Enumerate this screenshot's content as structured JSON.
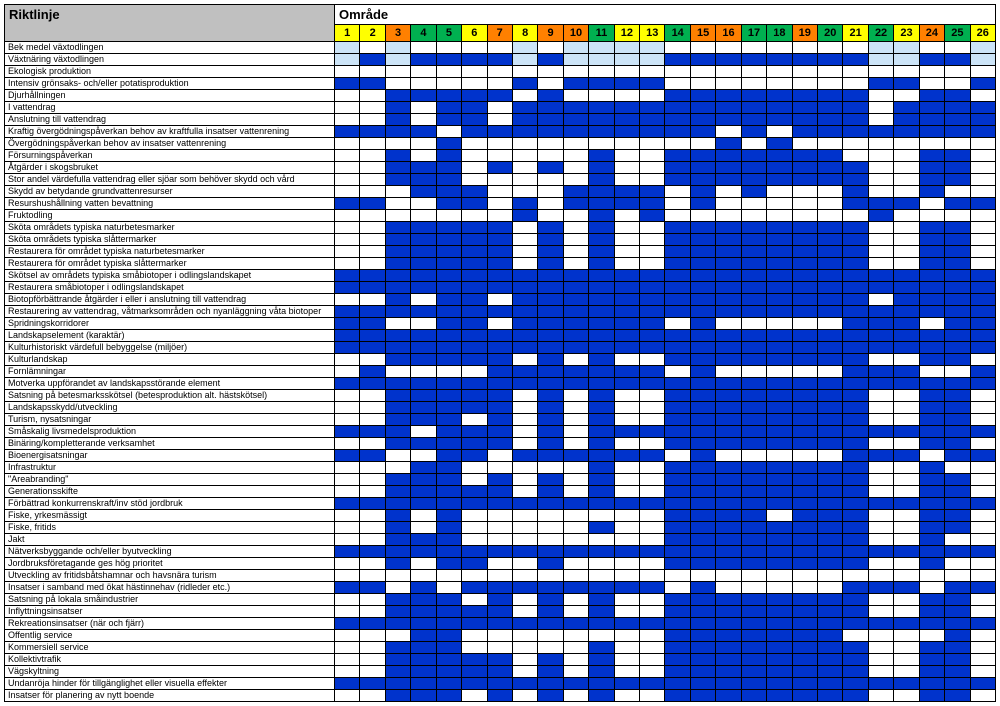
{
  "headers": {
    "left": "Riktlinje",
    "right": "Område"
  },
  "colors": {
    "yellow": "#ffff00",
    "orange": "#ff8000",
    "green": "#00b050",
    "blue_fill": "#0033cc",
    "lightblue_fill": "#cce4f7",
    "white": "#ffffff"
  },
  "columns": [
    {
      "n": "1",
      "c": "yellow"
    },
    {
      "n": "2",
      "c": "yellow"
    },
    {
      "n": "3",
      "c": "orange"
    },
    {
      "n": "4",
      "c": "green"
    },
    {
      "n": "5",
      "c": "green"
    },
    {
      "n": "6",
      "c": "yellow"
    },
    {
      "n": "7",
      "c": "orange"
    },
    {
      "n": "8",
      "c": "yellow"
    },
    {
      "n": "9",
      "c": "orange"
    },
    {
      "n": "10",
      "c": "orange"
    },
    {
      "n": "11",
      "c": "green"
    },
    {
      "n": "12",
      "c": "yellow"
    },
    {
      "n": "13",
      "c": "yellow"
    },
    {
      "n": "14",
      "c": "green"
    },
    {
      "n": "15",
      "c": "orange"
    },
    {
      "n": "16",
      "c": "orange"
    },
    {
      "n": "17",
      "c": "green"
    },
    {
      "n": "18",
      "c": "green"
    },
    {
      "n": "19",
      "c": "orange"
    },
    {
      "n": "20",
      "c": "green"
    },
    {
      "n": "21",
      "c": "yellow"
    },
    {
      "n": "22",
      "c": "green"
    },
    {
      "n": "23",
      "c": "yellow"
    },
    {
      "n": "24",
      "c": "orange"
    },
    {
      "n": "25",
      "c": "green"
    },
    {
      "n": "26",
      "c": "yellow"
    }
  ],
  "rows": [
    {
      "label": "Bek medel växtodlingen",
      "cells": "L.L....L.LLLL........LL..L"
    },
    {
      "label": "Växtnäring växtodlingen",
      "cells": "LBLBBBBLBLLLLBBBBBBBBLLBBL"
    },
    {
      "label": "Ekologisk produktion",
      "cells": ".........................."
    },
    {
      "label": "Intensiv grönsaks- och/eller potatisproduktion",
      "cells": "BB.....B.BBBB........BB..B"
    },
    {
      "label": "Djurhållningen",
      "cells": "..BBBBB.B....BBBBBBBB..BB."
    },
    {
      "label": "I vattendrag",
      "cells": "..B.BB.BBBBBBBBBBBBBB.BBBB"
    },
    {
      "label": "Anslutning till vattendrag",
      "cells": "..B.BB.BBBBBBBBBBBBBB.BBBB"
    },
    {
      "label": "Kraftig övergödningspåverkan behov av kraftfulla insatser vattenrening",
      "cells": "BBBB.BBBBBBBBBB.B.BBBBBBBB"
    },
    {
      "label": "Övergödningspåverkan behov av insatser vattenrening",
      "cells": "....B..........B.B........"
    },
    {
      "label": "Försurningspåverkan",
      "cells": "..B.B.....B..BBBBBBB...BB."
    },
    {
      "label": "Åtgärder i skogsbruket",
      "cells": "..BBB.B.B.B..BBBBBBBB..BB."
    },
    {
      "label": "Stor andel värdefulla vattendrag eller sjöar som behöver skydd och vård",
      "cells": "..BBB.....B..BBBBBBBB..BB."
    },
    {
      "label": "Skydd av betydande grundvattenresurser",
      "cells": "...BBB...BBBB.B.B...B..B.."
    },
    {
      "label": "Resurshushållning vatten bevattning",
      "cells": "BB..BB.B.BBBB.B.....BBB.BB"
    },
    {
      "label": "Fruktodling",
      "cells": ".......B..B.B........B...."
    },
    {
      "label": "Sköta områdets typiska naturbetesmarker",
      "cells": "..BBBBB.B.B..BBBBBBBB..BB."
    },
    {
      "label": "Sköta områdets typiska slåttermarker",
      "cells": "..BBBBB.B.B..BBBBBBBB..BB."
    },
    {
      "label": "Restaurera för området typiska naturbetesmarker",
      "cells": "..BBBBB.B.B..BBBBBBBB..BB."
    },
    {
      "label": "Restaurera för området typiska slåttermarker",
      "cells": "..BBBBB.B.B..BBBBBBBB..BB."
    },
    {
      "label": "Skötsel av områdets typiska småbiotoper i odlingslandskapet",
      "cells": "BBBBBBBBBBBBBBBBBBBBBBBBBB"
    },
    {
      "label": "Restaurera småbiotoper i odlingslandskapet",
      "cells": "BBBBBBBBBBBBBBBBBBBBBBBBBB"
    },
    {
      "label": "Biotopförbättrande åtgärder i eller i anslutning till vattendrag",
      "cells": "..B.BB.BBBBBBBBBBBBBB.BBBB"
    },
    {
      "label": "Restaurering av vattendrag, våtmarksområden och nyanläggning våta biotoper",
      "cells": "BBBBBBBBBBBBBBBBBBBBBBBBBB"
    },
    {
      "label": "Spridningskorridorer",
      "cells": "BB..BB.BBBBBB.B.....BBB.BB"
    },
    {
      "label": "Landskapselement (karaktär)",
      "cells": "BBBBBBBBBBBBBBBBBBBBBBBBBB"
    },
    {
      "label": "Kulturhistoriskt värdefull bebyggelse (miljöer)",
      "cells": "BBBBBBBBBBBBBBBBBBBBBBBBBB"
    },
    {
      "label": "Kulturlandskap",
      "cells": "..BBBBB.B.B..BBBBBBBB..BB."
    },
    {
      "label": "Fornlämningar",
      "cells": ".B....BBBBBBB.B.....BBB..B"
    },
    {
      "label": "Motverka uppförandet av landskapsstörande element",
      "cells": "BBBBBBBBBBBBBBBBBBBBBBBBBB"
    },
    {
      "label": "Satsning på betesmarksskötsel (betesproduktion alt. hästskötsel)",
      "cells": "..BBBBB.B.B..BBBBBBBB..BB."
    },
    {
      "label": "Landskapsskydd/utveckling",
      "cells": "..BBBBB.B.B..BBBBBBBB..BB."
    },
    {
      "label": "Turism, nysatsningar",
      "cells": "..BBB.B.B.B..BBBBBBBB..BB."
    },
    {
      "label": "Småskalig livsmedelsproduktion",
      "cells": "BBB.BBB.B.BBBBBBBBBBBBBBBB"
    },
    {
      "label": "Binäring/kompletterande verksamhet",
      "cells": "..BBBBB.B.B..BBBBBBBB..BB."
    },
    {
      "label": "Bioenergisatsningar",
      "cells": "BB..BB.BBBBBB.B.....BBB.BB"
    },
    {
      "label": "Infrastruktur",
      "cells": "...BB.....B..BBBBBBBB..B.."
    },
    {
      "label": "\"Areabranding\"",
      "cells": "..BBB.B.B.B..BBBBBBBB..BB."
    },
    {
      "label": "Generationsskifte",
      "cells": "..BBBBB.B.B..BBBBBBBB..BB."
    },
    {
      "label": "Förbättrad konkurrenskraft/inv stöd jordbruk",
      "cells": "BBBBBBBBBBBBBBBBBBBBBBBBBB"
    },
    {
      "label": "Fiske, yrkesmässigt",
      "cells": "..B.B........BBBB.BBB..BB."
    },
    {
      "label": "Fiske, fritids",
      "cells": "..B.B.....B..BBBBBBBB..BB."
    },
    {
      "label": "Jakt",
      "cells": "..BBB........BBBBBBBB..B.."
    },
    {
      "label": "Nätverksbyggande och/eller byutveckling",
      "cells": "BBBBBBBBBBBBBBBBBBBBBBBBBB"
    },
    {
      "label": "Jordbruksföretagande ges hög prioritet",
      "cells": "..B.BB..B....BBBBBBBB..B.."
    },
    {
      "label": "Utveckling av fritidsbåtshamnar och havsnära turism",
      "cells": ".........................."
    },
    {
      "label": "Insatser i samband med ökat hästinnehav (ridleder etc.)",
      "cells": "BB.B.BBBBBBBB.B.....BBB.BB"
    },
    {
      "label": "Satsning på lokala småindustrier",
      "cells": "..BBB.B.B.B..BBBBBBBB..BB."
    },
    {
      "label": "Inflyttningsinsatser",
      "cells": "..BBBBB.B.B..BBBBBBBB..BB."
    },
    {
      "label": "Rekreationsinsatser (när och fjärr)",
      "cells": "BBBBBBBBBBBBBBBBBBBBBBBBBB"
    },
    {
      "label": "Offentlig service",
      "cells": "...BB........BBBBBBB....B."
    },
    {
      "label": "Kommersiell service",
      "cells": "..BBB.....B..BBBBBBBB..BB."
    },
    {
      "label": "Kollektivtrafik",
      "cells": "..BBBBB.B.B..BBBBBBBB..BB."
    },
    {
      "label": "Vägskyltning",
      "cells": "..BBBBB.B.B..BBBBBBBB..BB."
    },
    {
      "label": "Undanröja hinder för tillgänglighet eller visuella effekter",
      "cells": "BBBBBBBBBBBBBBBBBBBBBBBBBB"
    },
    {
      "label": "Insatser för planering av nytt boende",
      "cells": "..BBB.B.B.B..BBBBBBBB..BB."
    }
  ]
}
